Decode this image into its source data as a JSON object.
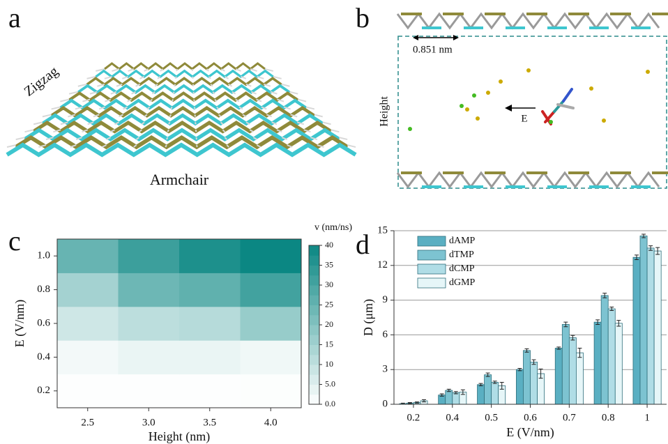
{
  "panel_a": {
    "label": "a",
    "zigzag": "Zigzag",
    "armchair": "Armchair"
  },
  "panel_b": {
    "label": "b",
    "spacing": "0.851 nm",
    "height": "Height",
    "field": "E"
  },
  "chart_data": [
    {
      "type": "heatmap",
      "panel_label": "c",
      "x_label": "Height (nm)",
      "y_label": "E (V/nm)",
      "categories": [
        "2.5",
        "3.0",
        "3.5",
        "4.0"
      ],
      "rows": [
        "0.2",
        "0.4",
        "0.6",
        "0.8",
        "1.0"
      ],
      "z": [
        [
          0.3,
          0.3,
          0.3,
          0.5
        ],
        [
          2,
          3.5,
          3.5,
          2.5
        ],
        [
          8,
          11,
          12,
          17
        ],
        [
          15,
          24,
          26,
          31
        ],
        [
          25,
          32,
          37,
          40
        ]
      ],
      "colorbar_title": "v (nm/ns)",
      "zlim": [
        0,
        40
      ],
      "zticks": [
        {
          "value": 0,
          "label": "0.0"
        },
        {
          "value": 5,
          "label": "5.0"
        },
        10,
        15,
        20,
        25,
        30,
        35,
        40
      ],
      "colors": [
        "#ffffff",
        "#0b8783"
      ]
    },
    {
      "type": "bar",
      "panel_label": "d",
      "x_label": "E (V/nm)",
      "y_label": "D (μm)",
      "categories": [
        "0.2",
        "0.4",
        "0.5",
        "0.6",
        "0.7",
        "0.8",
        "1"
      ],
      "series": [
        {
          "name": "dAMP",
          "color": "#5aafc2",
          "values": [
            0.05,
            0.8,
            1.7,
            3.0,
            4.85,
            7.1,
            12.7
          ],
          "errors": [
            0.05,
            0.1,
            0.1,
            0.1,
            0.1,
            0.2,
            0.2
          ]
        },
        {
          "name": "dTMP",
          "color": "#7dc3d1",
          "values": [
            0.1,
            1.2,
            2.55,
            4.65,
            6.9,
            9.4,
            14.55
          ],
          "errors": [
            0.05,
            0.1,
            0.15,
            0.15,
            0.2,
            0.2,
            0.15
          ]
        },
        {
          "name": "dCMP",
          "color": "#b0dde6",
          "values": [
            0.15,
            1.0,
            1.9,
            3.65,
            5.75,
            8.25,
            13.5
          ],
          "errors": [
            0.05,
            0.1,
            0.1,
            0.2,
            0.2,
            0.15,
            0.2
          ]
        },
        {
          "name": "dGMP",
          "color": "#e6f6f8",
          "values": [
            0.3,
            1.05,
            1.6,
            2.65,
            4.45,
            7.0,
            13.25
          ],
          "errors": [
            0.1,
            0.2,
            0.3,
            0.4,
            0.4,
            0.25,
            0.3
          ]
        }
      ],
      "ylim": [
        0,
        15
      ],
      "yticks": [
        0,
        3,
        6,
        9,
        12,
        15
      ],
      "grid": true,
      "legend": "top-left"
    }
  ]
}
